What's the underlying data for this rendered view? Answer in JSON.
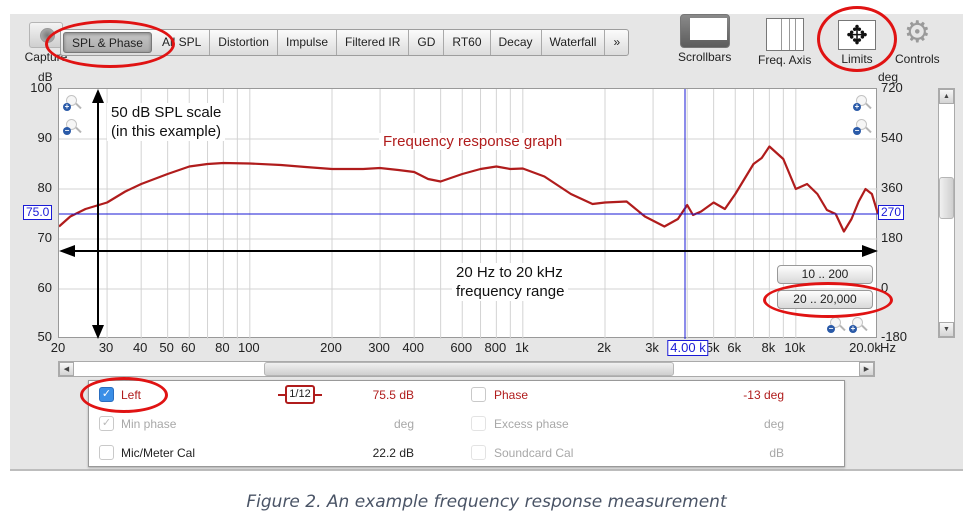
{
  "toolbar": {
    "capture_label": "Capture",
    "tabs": [
      "SPL & Phase",
      "All SPL",
      "Distortion",
      "Impulse",
      "Filtered IR",
      "GD",
      "RT60",
      "Decay",
      "Waterfall",
      "»"
    ],
    "active_tab": "SPL & Phase",
    "tools": [
      {
        "label": "Scrollbars",
        "icon": "scrollbars-icon"
      },
      {
        "label": "Freq. Axis",
        "icon": "freq-axis-icon"
      },
      {
        "label": "Limits",
        "icon": "limits-icon",
        "glyph": "✥"
      },
      {
        "label": "Controls",
        "icon": "gear-icon",
        "glyph": "⚙"
      }
    ]
  },
  "graph": {
    "left_unit": "dB",
    "right_unit": "deg",
    "y_left_ticks": [
      "100",
      "90",
      "80",
      "70",
      "60",
      "50"
    ],
    "y_right_ticks": [
      "720",
      "540",
      "360",
      "180",
      "0",
      "-180"
    ],
    "x_ticks": [
      "20",
      "30",
      "40",
      "50",
      "60",
      "80",
      "100",
      "200",
      "300",
      "400",
      "600",
      "800",
      "1k",
      "2k",
      "3k",
      "5k",
      "6k",
      "8k",
      "10k",
      "20.0k"
    ],
    "x_unit": "Hz",
    "cursor_left_value": "75.0",
    "cursor_right_value": "270",
    "cursor_freq_value": "4.00 k",
    "annotation_scale_line1": "50 dB SPL scale",
    "annotation_scale_line2": "(in this example)",
    "annotation_graph": "Frequency response graph",
    "annotation_range_line1": "20 Hz to 20 kHz",
    "annotation_range_line2": "frequency range",
    "range_buttons": [
      "10 .. 200",
      "20 .. 20,000"
    ],
    "colors": {
      "trace": "#b01c1c",
      "cursor": "#1a1ad6",
      "grid": "#d3d3d3",
      "highlight_ring": "#e01313"
    }
  },
  "chart_data": {
    "type": "line",
    "title": "Frequency response graph",
    "xlabel": "Hz",
    "ylabel": "dB",
    "xscale": "log",
    "xlim": [
      20,
      20000
    ],
    "ylim": [
      50,
      100
    ],
    "y2label": "deg",
    "y2lim": [
      -180,
      720
    ],
    "series": [
      {
        "name": "Left",
        "x": [
          20,
          22,
          25,
          30,
          35,
          40,
          50,
          60,
          70,
          80,
          100,
          130,
          160,
          200,
          260,
          300,
          350,
          400,
          450,
          500,
          600,
          700,
          800,
          900,
          1000,
          1200,
          1500,
          1800,
          2000,
          2400,
          2800,
          3300,
          3700,
          4000,
          4200,
          4500,
          5000,
          5500,
          6000,
          7000,
          7500,
          8000,
          9000,
          10000,
          11000,
          12000,
          13000,
          14000,
          15000,
          16000,
          17000,
          18000,
          19000,
          20000
        ],
        "y": [
          72.5,
          74.5,
          76,
          77.3,
          79.5,
          81,
          83,
          84.5,
          85,
          85.2,
          85.1,
          84.8,
          84.4,
          84,
          84,
          84.2,
          83.8,
          83.4,
          82,
          81.5,
          83,
          84,
          84.5,
          84,
          84.1,
          82.5,
          79,
          77,
          77.3,
          77.5,
          74.5,
          72.5,
          74,
          76.8,
          74.8,
          75.5,
          77.3,
          76,
          79,
          85,
          86.2,
          88.5,
          86,
          80,
          81,
          79,
          75.8,
          75,
          71.5,
          74,
          77.5,
          80,
          79,
          75
        ]
      }
    ]
  },
  "scrollbars": {
    "h_left_arrow": "◀",
    "h_right_arrow": "▶",
    "v_up_arrow": "▲",
    "v_down_arrow": "▼"
  },
  "legend": {
    "rows": [
      {
        "left_label": "Left",
        "left_checked": true,
        "smoothing": "1/12",
        "left_value": "75.5 dB",
        "right_label": "Phase",
        "right_checked": false,
        "right_value": "-13 deg"
      },
      {
        "left_label": "Min phase",
        "left_checked": true,
        "left_value": "deg",
        "right_label": "Excess phase",
        "right_checked": false,
        "right_value": "deg"
      },
      {
        "left_label": "Mic/Meter Cal",
        "left_checked": false,
        "left_value": "22.2 dB",
        "right_label": "Soundcard Cal",
        "right_checked": false,
        "right_value": "dB"
      }
    ]
  },
  "caption": "Figure 2. An example frequency response measurement"
}
